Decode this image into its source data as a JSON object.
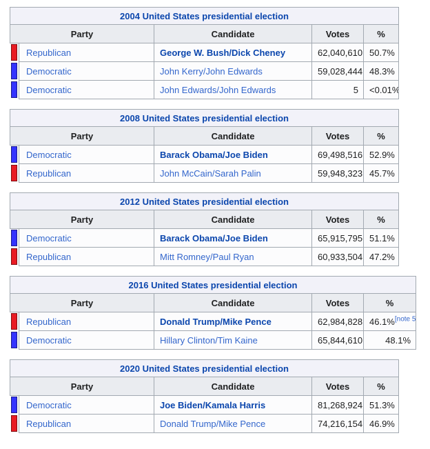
{
  "styles": {
    "link_color": "#3366cc",
    "bold_link_color": "#0b46ad",
    "title_row_bg": "#f2f2f9",
    "header_row_bg": "#eaecf0",
    "border_color": "#a2a9b1",
    "republican_color": "#e81b23",
    "democratic_color": "#3333ff"
  },
  "tables": [
    {
      "title": "2004 United States presidential election",
      "headers": {
        "party": "Party",
        "candidate": "Candidate",
        "votes": "Votes",
        "percent": "%"
      },
      "rows": [
        {
          "party": "Republican",
          "party_color": "#e81b23",
          "candidate": "George W. Bush/Dick Cheney",
          "winner": true,
          "votes": "62,040,610",
          "percent": "50.7%"
        },
        {
          "party": "Democratic",
          "party_color": "#3333ff",
          "candidate": "John Kerry/John Edwards",
          "winner": false,
          "votes": "59,028,444",
          "percent": "48.3%"
        },
        {
          "party": "Democratic",
          "party_color": "#3333ff",
          "candidate": "John Edwards/John Edwards",
          "winner": false,
          "votes": "5",
          "percent": "<0.01%"
        }
      ]
    },
    {
      "title": "2008 United States presidential election",
      "headers": {
        "party": "Party",
        "candidate": "Candidate",
        "votes": "Votes",
        "percent": "%"
      },
      "rows": [
        {
          "party": "Democratic",
          "party_color": "#3333ff",
          "candidate": "Barack Obama/Joe Biden",
          "winner": true,
          "votes": "69,498,516",
          "percent": "52.9%"
        },
        {
          "party": "Republican",
          "party_color": "#e81b23",
          "candidate": "John McCain/Sarah Palin",
          "winner": false,
          "votes": "59,948,323",
          "percent": "45.7%"
        }
      ]
    },
    {
      "title": "2012 United States presidential election",
      "headers": {
        "party": "Party",
        "candidate": "Candidate",
        "votes": "Votes",
        "percent": "%"
      },
      "rows": [
        {
          "party": "Democratic",
          "party_color": "#3333ff",
          "candidate": "Barack Obama/Joe Biden",
          "winner": true,
          "votes": "65,915,795",
          "percent": "51.1%"
        },
        {
          "party": "Republican",
          "party_color": "#e81b23",
          "candidate": "Mitt Romney/Paul Ryan",
          "winner": false,
          "votes": "60,933,504",
          "percent": "47.2%"
        }
      ]
    },
    {
      "title": "2016 United States presidential election",
      "headers": {
        "party": "Party",
        "candidate": "Candidate",
        "votes": "Votes",
        "percent": "%"
      },
      "rows": [
        {
          "party": "Republican",
          "party_color": "#e81b23",
          "candidate": "Donald Trump/Mike Pence",
          "winner": true,
          "votes": "62,984,828",
          "percent": "46.1%",
          "note": "[note 5]"
        },
        {
          "party": "Democratic",
          "party_color": "#3333ff",
          "candidate": "Hillary Clinton/Tim Kaine",
          "winner": false,
          "votes": "65,844,610",
          "percent": "48.1%"
        }
      ]
    },
    {
      "title": "2020 United States presidential election",
      "headers": {
        "party": "Party",
        "candidate": "Candidate",
        "votes": "Votes",
        "percent": "%"
      },
      "rows": [
        {
          "party": "Democratic",
          "party_color": "#3333ff",
          "candidate": "Joe Biden/Kamala Harris",
          "winner": true,
          "votes": "81,268,924",
          "percent": "51.3%"
        },
        {
          "party": "Republican",
          "party_color": "#e81b23",
          "candidate": "Donald Trump/Mike Pence",
          "winner": false,
          "votes": "74,216,154",
          "percent": "46.9%"
        }
      ]
    }
  ]
}
